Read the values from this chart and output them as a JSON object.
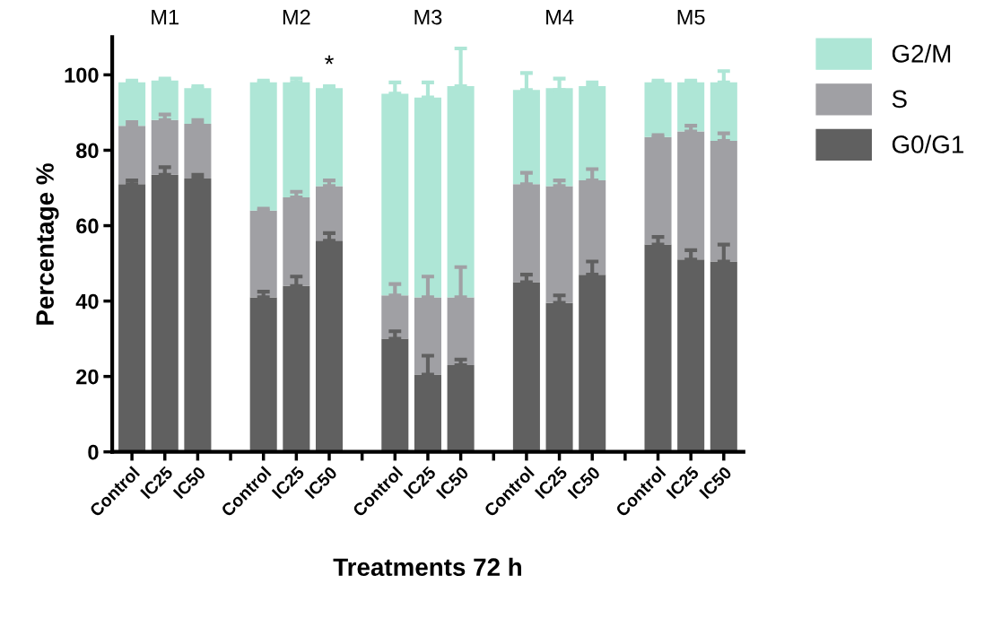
{
  "chart_data": {
    "type": "bar",
    "stacked": true,
    "xlabel": "Treatments 72 h",
    "ylabel": "Percentage %",
    "categories": [
      "Control",
      "IC25",
      "IC50",
      null,
      "Control",
      "IC25",
      "IC50",
      null,
      "Control",
      "IC25",
      "IC50",
      null,
      "Control",
      "IC25",
      "IC50",
      null,
      "Control",
      "IC25",
      "IC50"
    ],
    "series": [
      {
        "name": "G0/G1",
        "color": "#606060",
        "values": [
          71,
          73.5,
          72.5,
          null,
          41,
          44,
          56,
          null,
          30,
          20.5,
          23,
          null,
          45,
          39.5,
          47,
          null,
          55,
          51,
          50.5
        ],
        "errors": [
          [
            71,
            72
          ],
          [
            73.5,
            75.5
          ],
          [
            72.5,
            73.5
          ],
          null,
          [
            41,
            42.5
          ],
          [
            44,
            46.5
          ],
          [
            56,
            58
          ],
          null,
          [
            30,
            32
          ],
          [
            20.5,
            25.5
          ],
          [
            23,
            24.5
          ],
          null,
          [
            45,
            47
          ],
          [
            39.5,
            41.5
          ],
          [
            47,
            50.5
          ],
          null,
          [
            55,
            57
          ],
          [
            51,
            53.5
          ],
          [
            50.5,
            55
          ]
        ]
      },
      {
        "name": "S",
        "color": "#a0a0a4",
        "values": [
          15.5,
          14.5,
          14.5,
          null,
          23,
          23.5,
          14.5,
          null,
          11.5,
          20.5,
          18,
          null,
          26,
          31,
          25,
          null,
          28.5,
          34,
          32
        ],
        "errors": [
          [
            86.5,
            87.5
          ],
          [
            88,
            89.5
          ],
          [
            87,
            88
          ],
          null,
          [
            64,
            64.5
          ],
          [
            67.5,
            69
          ],
          [
            70.5,
            72
          ],
          null,
          [
            41.5,
            44.5
          ],
          [
            41,
            46.5
          ],
          [
            41,
            49
          ],
          null,
          [
            71,
            74
          ],
          [
            70.5,
            72
          ],
          [
            72,
            75
          ],
          null,
          [
            83.5,
            84
          ],
          [
            85,
            86.5
          ],
          [
            82.5,
            84.5
          ]
        ]
      },
      {
        "name": "G2/M",
        "color": "#aee6d6",
        "values": [
          11.5,
          10.5,
          9.5,
          null,
          34,
          30.5,
          26,
          null,
          53.5,
          53,
          56,
          null,
          25,
          26,
          25,
          null,
          14.5,
          13,
          15.5
        ],
        "errors": [
          [
            98,
            98.5
          ],
          [
            98.5,
            99
          ],
          [
            96.5,
            97
          ],
          null,
          [
            98,
            98.5
          ],
          [
            98,
            99
          ],
          [
            96.5,
            97
          ],
          null,
          [
            95,
            98
          ],
          [
            94,
            98
          ],
          [
            97,
            107
          ],
          null,
          [
            96,
            100.5
          ],
          [
            96,
            99
          ],
          [
            97,
            98
          ],
          null,
          [
            98,
            98.5
          ],
          [
            98,
            98.5
          ],
          [
            98,
            101
          ]
        ]
      }
    ],
    "ylim": [
      0,
      110
    ],
    "yticks": [
      0,
      20,
      40,
      60,
      80,
      100
    ],
    "legend": "right",
    "annotations": [
      "M1",
      "M2",
      "M3",
      "M4",
      "M5",
      "*"
    ]
  }
}
